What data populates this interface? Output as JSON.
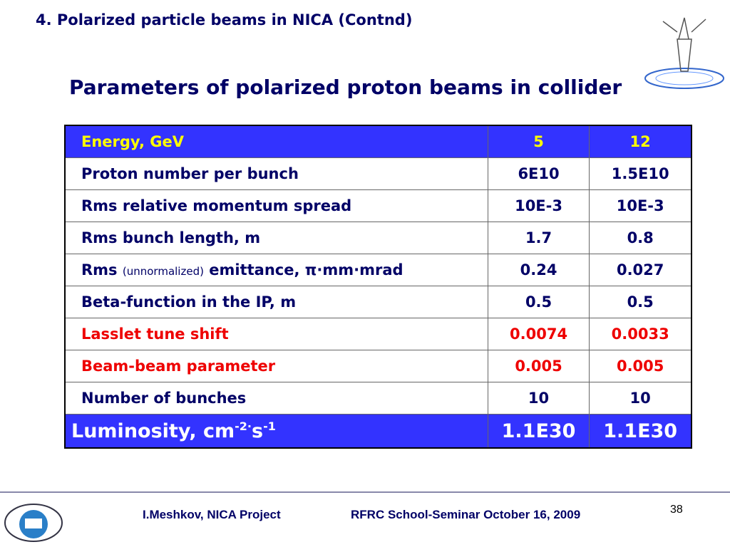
{
  "header": {
    "title": "4. Polarized particle beams in NICA (Contnd)",
    "subtitle": "Parameters of polarized proton beams in collider"
  },
  "table": {
    "rows": [
      {
        "label": "Energy,  GeV",
        "values": [
          "5",
          "12"
        ]
      },
      {
        "label": "Proton number per bunch",
        "values": [
          "6E10",
          "1.5E10"
        ]
      },
      {
        "label": "Rms relative momentum spread",
        "values": [
          "10E-3",
          "10E-3"
        ]
      },
      {
        "label": "Rms bunch length, m",
        "values": [
          "1.7",
          "0.8"
        ]
      },
      {
        "label": [
          "Rms",
          "(unnormalized)",
          "emittance, π·mm·mrad"
        ],
        "values": [
          "0.24",
          "0.027"
        ]
      },
      {
        "label": "Beta-function in the IP, m",
        "values": [
          "0.5",
          "0.5"
        ]
      },
      {
        "label": "Lasslet tune shift",
        "values": [
          "0.0074",
          "0.0033"
        ]
      },
      {
        "label": "Beam-beam parameter",
        "values": [
          "0.005",
          "0.005"
        ]
      },
      {
        "label": "Number of bunches",
        "values": [
          "10",
          "10"
        ]
      },
      {
        "label": [
          "Luminosity, cm",
          "-2·",
          "s",
          "-1"
        ],
        "values": [
          "1.1E30",
          "1.1E30"
        ]
      }
    ]
  },
  "footer": {
    "author": "I.Meshkov, NICA Project",
    "event": "RFRC School-Seminar October 16, 2009",
    "page": "38"
  }
}
